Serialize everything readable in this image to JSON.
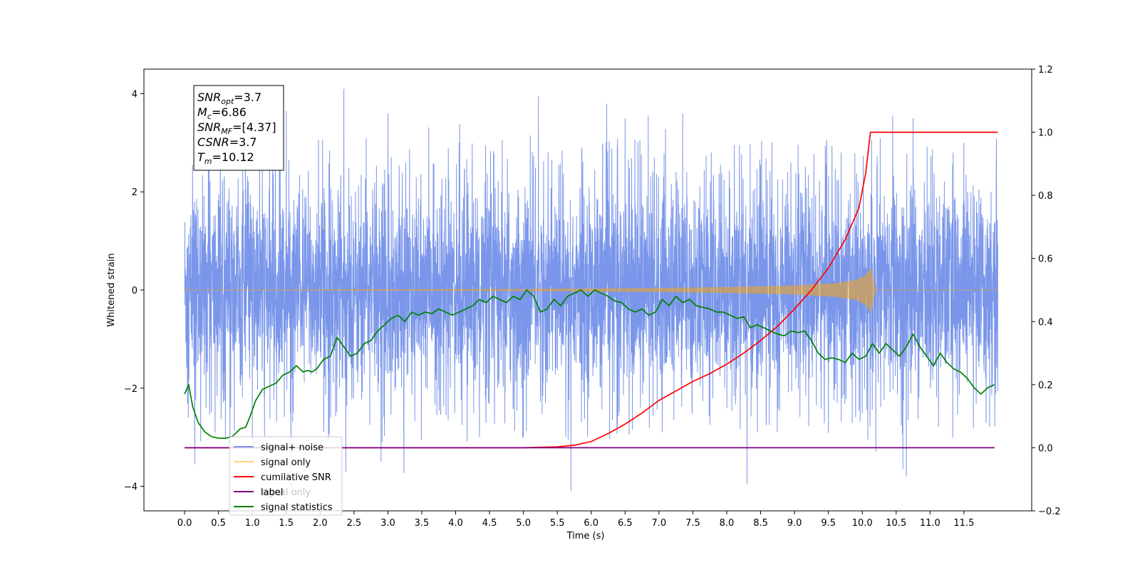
{
  "chart_data": {
    "type": "line",
    "xlabel": "Time (s)",
    "ylabel": "Whitened strain",
    "xlim": [
      -0.6,
      12.5
    ],
    "ylim": [
      -4.5,
      4.5
    ],
    "y2lim": [
      -0.2,
      1.2
    ],
    "x_ticks": [
      0.0,
      0.5,
      1.0,
      1.5,
      2.0,
      2.5,
      3.0,
      3.5,
      4.0,
      4.5,
      5.0,
      5.5,
      6.0,
      6.5,
      7.0,
      7.5,
      8.0,
      8.5,
      9.0,
      9.5,
      10.0,
      10.5,
      11.0,
      11.5
    ],
    "x_tick_labels": [
      "0.0",
      "0.5",
      "1.0",
      "1.5",
      "2.0",
      "2.5",
      "3.0",
      "3.5",
      "4.0",
      "4.5",
      "5.0",
      "5.5",
      "6.0",
      "6.5",
      "7.0",
      "7.5",
      "8.0",
      "8.5",
      "9.0",
      "9.5",
      "10.0",
      "10.5",
      "11.0",
      "11.5"
    ],
    "y_ticks": [
      -4,
      -2,
      0,
      2,
      4
    ],
    "y_tick_labels": [
      "−4",
      "−2",
      "0",
      "2",
      "4"
    ],
    "y2_ticks": [
      -0.2,
      0.0,
      0.2,
      0.4,
      0.6,
      0.8,
      1.0,
      1.2
    ],
    "y2_tick_labels": [
      "−0.2",
      "0.0",
      "0.2",
      "0.4",
      "0.6",
      "0.8",
      "1.0",
      "1.2"
    ],
    "grid": false,
    "legend_position": "lower-left",
    "annotation_box": {
      "position": "top-left",
      "lines": [
        {
          "base": "SNR",
          "sub": "opt",
          "value": "=3.7"
        },
        {
          "base": "M",
          "sub": "c",
          "value": "=6.86"
        },
        {
          "base": "SNR",
          "sub": "MF",
          "value": "=[4.37]"
        },
        {
          "base": "CSNR",
          "sub": "",
          "value": "=3.7"
        },
        {
          "base": "T",
          "sub": "m",
          "value": "=10.12"
        }
      ]
    },
    "series": [
      {
        "name": "signal+ noise",
        "color": "#4169e1",
        "opacity": 0.7,
        "axis": "left",
        "kind": "noise",
        "x_range": [
          0.0,
          12.0
        ],
        "typical_band": [
          -1.6,
          1.6
        ],
        "peaks": [
          {
            "x": 0.15,
            "y": -3.55
          },
          {
            "x": 0.35,
            "y": 2.6
          },
          {
            "x": 0.45,
            "y": -2.9
          },
          {
            "x": 1.0,
            "y": -3.1
          },
          {
            "x": 1.3,
            "y": 3.4
          },
          {
            "x": 1.5,
            "y": 3.65
          },
          {
            "x": 2.35,
            "y": 4.1
          },
          {
            "x": 2.38,
            "y": -3.7
          },
          {
            "x": 2.9,
            "y": -3.5
          },
          {
            "x": 3.0,
            "y": 3.6
          },
          {
            "x": 4.05,
            "y": 3.0
          },
          {
            "x": 5.1,
            "y": 3.15
          },
          {
            "x": 5.22,
            "y": 3.95
          },
          {
            "x": 5.7,
            "y": -4.1
          },
          {
            "x": 6.5,
            "y": 3.5
          },
          {
            "x": 7.05,
            "y": -2.9
          },
          {
            "x": 7.35,
            "y": 3.6
          },
          {
            "x": 8.3,
            "y": -3.95
          },
          {
            "x": 10.2,
            "y": -3.3
          },
          {
            "x": 10.45,
            "y": 3.55
          },
          {
            "x": 10.6,
            "y": -3.65
          },
          {
            "x": 10.65,
            "y": -3.8
          },
          {
            "x": 10.75,
            "y": 3.5
          },
          {
            "x": 11.5,
            "y": 3.0
          },
          {
            "x": 11.9,
            "y": 2.0
          }
        ]
      },
      {
        "name": "signal only",
        "color": "#ffa500",
        "opacity": 0.5,
        "axis": "left",
        "kind": "chirp",
        "x_range": [
          0.0,
          12.0
        ],
        "merger_time": 10.12,
        "envelope": [
          {
            "x": 0.0,
            "y": 0.005
          },
          {
            "x": 5.0,
            "y": 0.02
          },
          {
            "x": 7.0,
            "y": 0.04
          },
          {
            "x": 8.0,
            "y": 0.06
          },
          {
            "x": 9.0,
            "y": 0.09
          },
          {
            "x": 9.6,
            "y": 0.14
          },
          {
            "x": 9.9,
            "y": 0.2
          },
          {
            "x": 10.05,
            "y": 0.3
          },
          {
            "x": 10.12,
            "y": 0.45
          },
          {
            "x": 10.2,
            "y": 0.0
          },
          {
            "x": 12.0,
            "y": 0.0
          }
        ]
      },
      {
        "name": "cumilative SNR",
        "color": "#ff0000",
        "axis": "right",
        "x": [
          0.0,
          5.0,
          5.5,
          5.75,
          6.0,
          6.25,
          6.5,
          6.75,
          7.0,
          7.25,
          7.5,
          7.75,
          8.0,
          8.25,
          8.5,
          8.75,
          9.0,
          9.25,
          9.5,
          9.75,
          9.95,
          10.05,
          10.12,
          12.0
        ],
        "y": [
          0.0,
          0.0,
          0.003,
          0.008,
          0.02,
          0.045,
          0.075,
          0.11,
          0.15,
          0.18,
          0.21,
          0.235,
          0.265,
          0.3,
          0.34,
          0.385,
          0.44,
          0.5,
          0.57,
          0.66,
          0.76,
          0.87,
          1.0,
          1.0
        ]
      },
      {
        "name": "label",
        "color": "#800080",
        "axis": "right",
        "x": [
          0.0,
          11.95
        ],
        "y": [
          0.0,
          0.0
        ]
      },
      {
        "name": "signal statistics",
        "color": "#008000",
        "axis": "right",
        "x": [
          0.0,
          0.06,
          0.12,
          0.2,
          0.3,
          0.4,
          0.5,
          0.6,
          0.7,
          0.75,
          0.82,
          0.9,
          0.95,
          1.05,
          1.15,
          1.25,
          1.35,
          1.45,
          1.55,
          1.65,
          1.75,
          1.82,
          1.88,
          1.95,
          2.05,
          2.15,
          2.25,
          2.35,
          2.45,
          2.55,
          2.65,
          2.75,
          2.85,
          2.95,
          3.05,
          3.15,
          3.25,
          3.35,
          3.45,
          3.55,
          3.65,
          3.75,
          3.85,
          3.95,
          4.05,
          4.15,
          4.25,
          4.35,
          4.45,
          4.55,
          4.65,
          4.75,
          4.85,
          4.95,
          5.05,
          5.15,
          5.25,
          5.35,
          5.45,
          5.55,
          5.65,
          5.75,
          5.85,
          5.95,
          6.05,
          6.15,
          6.25,
          6.35,
          6.45,
          6.55,
          6.65,
          6.75,
          6.85,
          6.95,
          7.05,
          7.15,
          7.25,
          7.35,
          7.45,
          7.55,
          7.65,
          7.75,
          7.85,
          7.95,
          8.05,
          8.15,
          8.25,
          8.35,
          8.45,
          8.55,
          8.65,
          8.75,
          8.85,
          8.95,
          9.05,
          9.15,
          9.25,
          9.35,
          9.45,
          9.55,
          9.65,
          9.75,
          9.85,
          9.95,
          10.05,
          10.15,
          10.25,
          10.35,
          10.45,
          10.55,
          10.65,
          10.75,
          10.85,
          10.95,
          11.05,
          11.15,
          11.25,
          11.35,
          11.45,
          11.55,
          11.65,
          11.75,
          11.85,
          11.95
        ],
        "y": [
          0.17,
          0.2,
          0.13,
          0.08,
          0.05,
          0.035,
          0.03,
          0.03,
          0.035,
          0.045,
          0.06,
          0.065,
          0.09,
          0.15,
          0.185,
          0.195,
          0.205,
          0.23,
          0.24,
          0.26,
          0.24,
          0.245,
          0.24,
          0.25,
          0.28,
          0.29,
          0.35,
          0.32,
          0.29,
          0.3,
          0.33,
          0.34,
          0.37,
          0.39,
          0.41,
          0.42,
          0.4,
          0.43,
          0.42,
          0.43,
          0.425,
          0.44,
          0.43,
          0.42,
          0.43,
          0.44,
          0.45,
          0.47,
          0.46,
          0.48,
          0.47,
          0.46,
          0.48,
          0.47,
          0.5,
          0.48,
          0.43,
          0.44,
          0.47,
          0.45,
          0.48,
          0.49,
          0.5,
          0.48,
          0.5,
          0.49,
          0.48,
          0.465,
          0.46,
          0.44,
          0.43,
          0.44,
          0.42,
          0.43,
          0.47,
          0.45,
          0.48,
          0.46,
          0.47,
          0.45,
          0.445,
          0.44,
          0.43,
          0.43,
          0.42,
          0.41,
          0.415,
          0.38,
          0.39,
          0.38,
          0.37,
          0.36,
          0.355,
          0.37,
          0.365,
          0.37,
          0.34,
          0.3,
          0.28,
          0.285,
          0.28,
          0.27,
          0.3,
          0.28,
          0.29,
          0.33,
          0.3,
          0.33,
          0.31,
          0.29,
          0.32,
          0.36,
          0.32,
          0.29,
          0.26,
          0.3,
          0.27,
          0.25,
          0.24,
          0.22,
          0.19,
          0.17,
          0.19,
          0.2
        ]
      }
    ],
    "legend_overlap_text": [
      {
        "text": "signal only",
        "under_entry": 3
      }
    ]
  }
}
